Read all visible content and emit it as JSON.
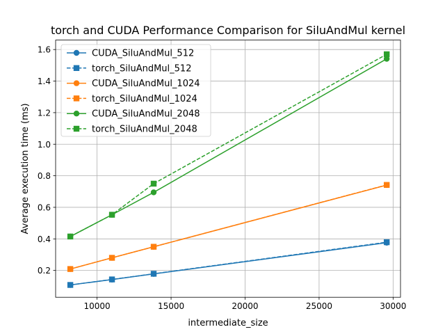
{
  "chart_data": {
    "type": "line",
    "title": "torch and CUDA Performance Comparison for SiluAndMul kernel",
    "xlabel": "intermediate_size",
    "ylabel": "Average execution time (ms)",
    "xlim": [
      7200,
      30500
    ],
    "ylim": [
      0.03,
      1.66
    ],
    "xticks": [
      10000,
      15000,
      20000,
      25000,
      30000
    ],
    "yticks": [
      0.2,
      0.4,
      0.6,
      0.8,
      1.0,
      1.2,
      1.4,
      1.6
    ],
    "xtick_labels": [
      "10000",
      "15000",
      "20000",
      "25000",
      "30000"
    ],
    "ytick_labels": [
      "0.2",
      "0.4",
      "0.6",
      "0.8",
      "1.0",
      "1.2",
      "1.4",
      "1.6"
    ],
    "grid": true,
    "legend_position": "upper-left",
    "x": [
      8192,
      11008,
      13824,
      29568
    ],
    "series": [
      {
        "name": "CUDA_SiluAndMul_512",
        "color": "#1f77b4",
        "linestyle": "solid",
        "marker": "circle",
        "values": [
          0.108,
          0.142,
          0.178,
          0.376
        ]
      },
      {
        "name": "torch_SiluAndMul_512",
        "color": "#1f77b4",
        "linestyle": "dashed",
        "marker": "square",
        "values": [
          0.108,
          0.143,
          0.179,
          0.379
        ]
      },
      {
        "name": "CUDA_SiluAndMul_1024",
        "color": "#ff7f0e",
        "linestyle": "solid",
        "marker": "circle",
        "values": [
          0.209,
          0.28,
          0.35,
          0.741
        ]
      },
      {
        "name": "torch_SiluAndMul_1024",
        "color": "#ff7f0e",
        "linestyle": "dashed",
        "marker": "square",
        "values": [
          0.209,
          0.28,
          0.35,
          0.742
        ]
      },
      {
        "name": "CUDA_SiluAndMul_2048",
        "color": "#2ca02c",
        "linestyle": "solid",
        "marker": "circle",
        "values": [
          0.415,
          0.553,
          0.695,
          1.541
        ]
      },
      {
        "name": "torch_SiluAndMul_2048",
        "color": "#2ca02c",
        "linestyle": "dashed",
        "marker": "square",
        "values": [
          0.415,
          0.553,
          0.75,
          1.57
        ]
      }
    ]
  }
}
